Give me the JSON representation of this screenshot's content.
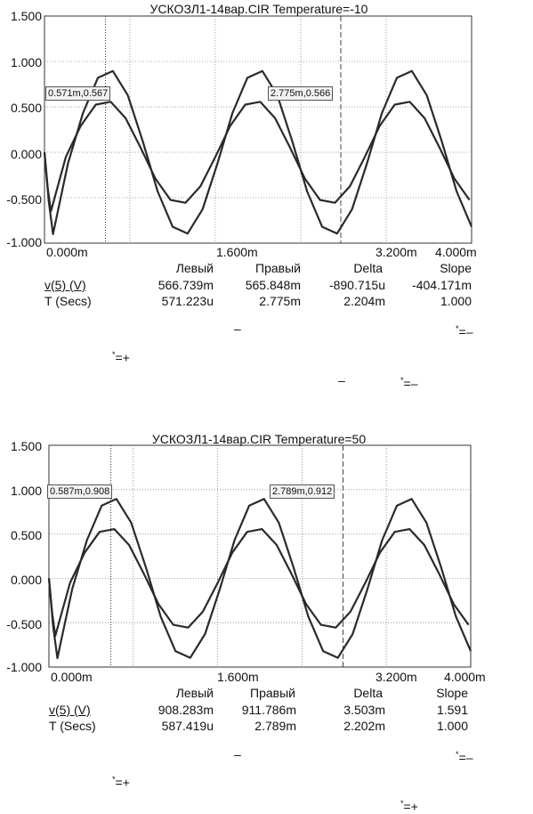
{
  "panels": [
    {
      "title": "УСКОЗЛ1-14вар.CIR Temperature=-10",
      "y_ticks": [
        "1.500",
        "1.000",
        "0.500",
        "0.000",
        "-0.500",
        "-1.000"
      ],
      "x_ticks": [
        "0.000m",
        "1.600m",
        "3.200m",
        "4.000m"
      ],
      "cursor_left_label": "0.571m,0.567",
      "cursor_right_label": "2.775m,0.566",
      "table": {
        "headers": [
          "Левый",
          "Правый",
          "Delta",
          "Slope"
        ],
        "rows": [
          {
            "name": "v(5) (V)",
            "values": [
              "566.739m",
              "565.848m",
              "-890.715u",
              "-404.171m"
            ]
          },
          {
            "name": "T (Secs)",
            "values": [
              "571.223u",
              "2.775m",
              "2.204m",
              "1.000"
            ]
          }
        ]
      },
      "notes": {
        "dash1": "–",
        "right_top": "=–",
        "left_mid": "=+",
        "dash2": "–",
        "right_mid": "=–"
      }
    },
    {
      "title": "УСКОЗЛ1-14вар.CIR Temperature=50",
      "y_ticks": [
        "1.500",
        "1.000",
        "0.500",
        "0.000",
        "-0.500",
        "-1.000"
      ],
      "x_ticks": [
        "0.000m",
        "1.600m",
        "3.200m",
        "4.000m"
      ],
      "cursor_left_label": "0.587m,0.908",
      "cursor_right_label": "2.789m,0.912",
      "table": {
        "headers": [
          "Левый",
          "Правый",
          "Delta",
          "Slope"
        ],
        "rows": [
          {
            "name": "v(5) (V)",
            "values": [
              "908.283m",
              "911.786m",
              "3.503m",
              "1.591"
            ]
          },
          {
            "name": "T (Secs)",
            "values": [
              "587.419u",
              "2.789m",
              "2.202m",
              "1.000"
            ]
          }
        ]
      },
      "notes": {
        "dash1": "–",
        "right_top": "=–",
        "left_mid": "=+",
        "right_bottom": "=+"
      }
    }
  ],
  "chart_data": [
    {
      "type": "line",
      "title": "УСКОЗЛ1-14вар.CIR Temperature=-10",
      "xlim": [
        0,
        4.0
      ],
      "ylim": [
        -1.0,
        1.5
      ],
      "x_unit": "ms",
      "grid": true,
      "series": [
        {
          "amplitude": 0.91,
          "period_ms": 1.4,
          "peak_time_ms": 0.6,
          "start_value": 0.0,
          "initial_min_value": -0.9,
          "initial_min_time_ms": 0.08
        },
        {
          "amplitude": 0.57,
          "period_ms": 1.4,
          "peak_time_ms": 0.57,
          "start_value": 0.0,
          "initial_min_value": -0.65,
          "initial_min_time_ms": 0.06
        }
      ],
      "cursors_ms": [
        0.571,
        2.775
      ]
    },
    {
      "type": "line",
      "title": "УСКОЗЛ1-14вар.CIR Temperature=50",
      "xlim": [
        0,
        4.0
      ],
      "ylim": [
        -1.0,
        1.5
      ],
      "x_unit": "ms",
      "grid": true,
      "series": [
        {
          "amplitude": 0.91,
          "period_ms": 1.4,
          "peak_time_ms": 0.6,
          "start_value": 0.0,
          "initial_min_value": -0.9,
          "initial_min_time_ms": 0.08
        },
        {
          "amplitude": 0.57,
          "period_ms": 1.4,
          "peak_time_ms": 0.57,
          "start_value": 0.0,
          "initial_min_value": -0.65,
          "initial_min_time_ms": 0.06
        }
      ],
      "cursors_ms": [
        0.587,
        2.789
      ]
    }
  ]
}
